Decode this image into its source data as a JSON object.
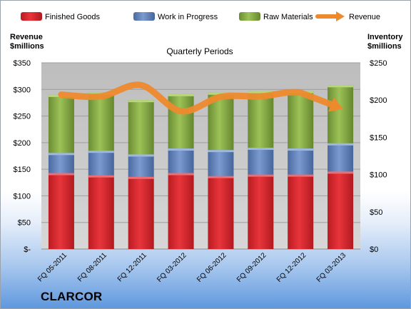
{
  "company": "CLARCOR",
  "left_axis_title": [
    "Revenue",
    "$millions"
  ],
  "right_axis_title": [
    "Inventory",
    "$millions"
  ],
  "chart_data": {
    "type": "bar",
    "subtype": "stacked-bar-with-line",
    "title": "Quarterly Periods",
    "categories": [
      "FQ 05-2011",
      "FQ 08-2011",
      "FQ 12-2011",
      "FQ 03-2012",
      "FQ 06-2012",
      "FQ 09-2012",
      "FQ 12-2012",
      "FQ 03-2013"
    ],
    "series": [
      {
        "name": "Finished Goods",
        "axis": "right",
        "color": "#d8232a",
        "values": [
          102,
          99,
          97,
          102,
          98,
          100,
          100,
          104
        ]
      },
      {
        "name": "Work in Progress",
        "axis": "right",
        "color": "#5a7fb8",
        "values": [
          27,
          33,
          30,
          33,
          35,
          36,
          35,
          38
        ]
      },
      {
        "name": "Raw Materials",
        "axis": "right",
        "color": "#7ea23e",
        "values": [
          78,
          78,
          73,
          73,
          77,
          76,
          77,
          78
        ]
      },
      {
        "name": "Revenue",
        "axis": "left",
        "type": "line",
        "color": "#ee8a2e",
        "values": [
          290,
          287,
          308,
          259,
          286,
          287,
          294,
          265
        ]
      }
    ],
    "left_axis": {
      "min": 0,
      "max": 350,
      "step": 50,
      "tick_labels": [
        "$-",
        "$50",
        "$100",
        "$150",
        "$200",
        "$250",
        "$300",
        "$350"
      ]
    },
    "right_axis": {
      "min": 0,
      "max": 250,
      "step": 50,
      "tick_labels": [
        "$0",
        "$50",
        "$100",
        "$150",
        "$200",
        "$250"
      ]
    },
    "grid": true,
    "legend_position": "top"
  }
}
